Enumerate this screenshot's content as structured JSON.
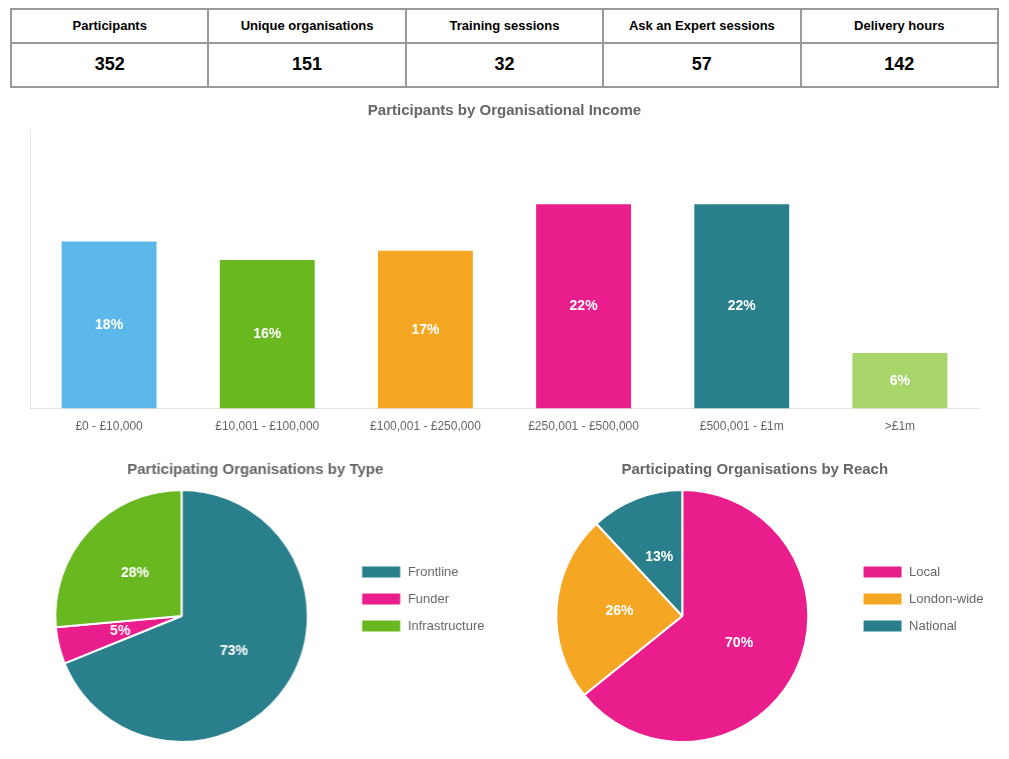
{
  "chart_data": [
    {
      "type": "table",
      "categories": [
        "Participants",
        "Unique organisations",
        "Training sessions",
        "Ask an Expert sessions",
        "Delivery hours"
      ],
      "values": [
        352,
        151,
        32,
        57,
        142
      ]
    },
    {
      "type": "bar",
      "title": "Participants by Organisational Income",
      "categories": [
        "£0 - £10,000",
        "£10,001 - £100,000",
        "£100,001 - £250,000",
        "£250,001 - £500,000",
        "£500,001 - £1m",
        ">£1m"
      ],
      "values": [
        18,
        16,
        17,
        22,
        22,
        6
      ],
      "value_labels": [
        "18%",
        "16%",
        "17%",
        "22%",
        "22%",
        "6%"
      ],
      "data_labels": true,
      "colors": [
        "#5BB8E8",
        "#6AB820",
        "#F5A623",
        "#E91E8C",
        "#2A7F8C",
        "#A8D56A"
      ],
      "ylim": [
        0,
        30
      ],
      "tick_labels": "x",
      "grid": false
    },
    {
      "type": "pie",
      "title": "Participating Organisations by Type",
      "categories": [
        "Frontline",
        "Funder",
        "Infrastructure"
      ],
      "values": [
        73,
        5,
        28
      ],
      "value_labels": [
        "73%",
        "5%",
        "28%"
      ],
      "data_labels": true,
      "colors": [
        "#2A7F8C",
        "#E91E8C",
        "#6AB820"
      ],
      "legend": "right"
    },
    {
      "type": "pie",
      "title": "Participating Organisations by Reach",
      "categories": [
        "Local",
        "London-wide",
        "National"
      ],
      "values": [
        70,
        26,
        13
      ],
      "value_labels": [
        "70%",
        "26%",
        "13%"
      ],
      "data_labels": true,
      "colors": [
        "#E91E8C",
        "#F5A623",
        "#2A7F8C"
      ],
      "legend": "right"
    }
  ]
}
